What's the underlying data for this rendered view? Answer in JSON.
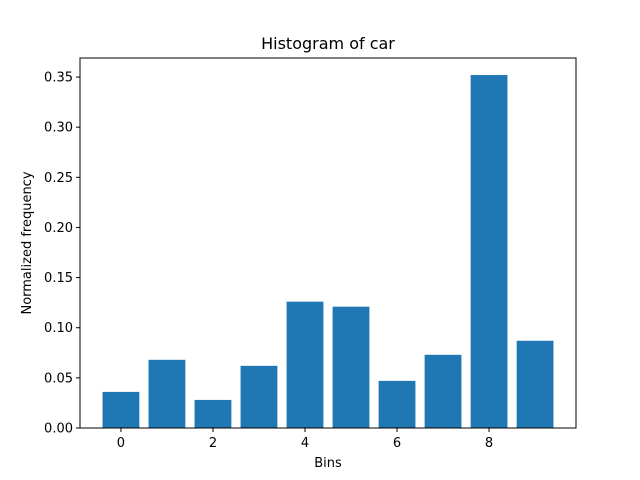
{
  "chart_data": {
    "type": "bar",
    "title": "Histogram of car",
    "xlabel": "Bins",
    "ylabel": "Normalized frequency",
    "categories": [
      0,
      1,
      2,
      3,
      4,
      5,
      6,
      7,
      8,
      9
    ],
    "values": [
      0.036,
      0.068,
      0.028,
      0.062,
      0.126,
      0.121,
      0.047,
      0.073,
      0.352,
      0.087
    ],
    "xlim": [
      -0.89,
      9.89
    ],
    "ylim": [
      0,
      0.369
    ],
    "xticks": [
      0,
      2,
      4,
      6,
      8
    ],
    "xtick_labels": [
      "0",
      "2",
      "4",
      "6",
      "8"
    ],
    "yticks": [
      0,
      0.05,
      0.1,
      0.15,
      0.2,
      0.25,
      0.3,
      0.35
    ],
    "ytick_labels": [
      "0.00",
      "0.05",
      "0.10",
      "0.15",
      "0.20",
      "0.25",
      "0.30",
      "0.35"
    ],
    "bar_color": "#1f77b4",
    "grid": false,
    "legend": false
  }
}
